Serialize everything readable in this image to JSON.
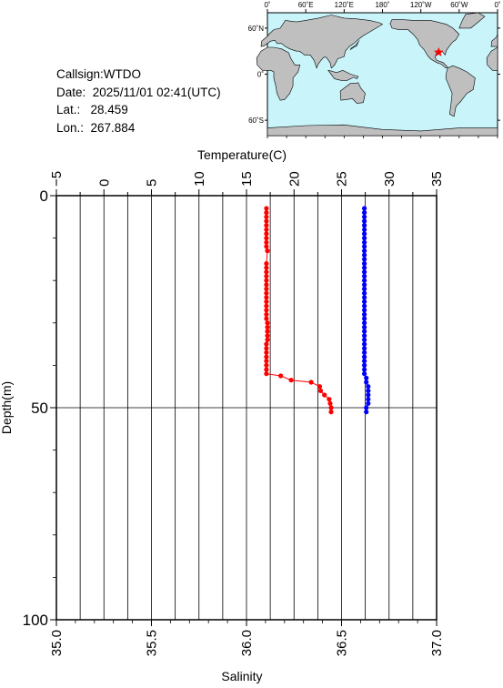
{
  "info": {
    "callsign": "Callsign:WTDO",
    "date": "Date:  2025/11/01 02:41(UTC)",
    "lat": "Lat.:   28.459",
    "lon": "Lon.:  267.884"
  },
  "map": {
    "top_ticks": [
      "0˚",
      "60˚E",
      "120˚E",
      "180˚",
      "120˚W",
      "60˚W",
      "0˚"
    ],
    "left_ticks": [
      "60˚N",
      "0˚",
      "60˚S"
    ],
    "station_marker": "star",
    "colors": {
      "ocean": "#c8f4fa",
      "land": "#bfbfbf",
      "marker": "#ff0000"
    }
  },
  "chart_data": {
    "type": "scatter",
    "title": "",
    "ylabel": "Depth(m)",
    "ylim": [
      100,
      0
    ],
    "yticks": [
      "0",
      "50",
      "100"
    ],
    "grid": true,
    "temperature_axis": {
      "label": "Temperature(C)",
      "range": [
        -5,
        35
      ],
      "ticks": [
        "−5",
        "0",
        "5",
        "10",
        "15",
        "20",
        "25",
        "30",
        "35"
      ]
    },
    "salinity_axis": {
      "label": "Salinity",
      "range": [
        35.0,
        37.0
      ],
      "ticks": [
        "35.0",
        "35.5",
        "36.0",
        "36.5",
        "37.0"
      ]
    },
    "series": [
      {
        "variable": "temperature",
        "color": "#ff0000",
        "points": [
          [
            17.1,
            3
          ],
          [
            17.1,
            4
          ],
          [
            17.1,
            5
          ],
          [
            17.1,
            6
          ],
          [
            17.1,
            7
          ],
          [
            17.1,
            8
          ],
          [
            17.1,
            9
          ],
          [
            17.1,
            10
          ],
          [
            17.1,
            11
          ],
          [
            17.1,
            12
          ],
          [
            17.2,
            13
          ],
          [
            17.1,
            16
          ],
          [
            17.1,
            17
          ],
          [
            17.1,
            18
          ],
          [
            17.1,
            19
          ],
          [
            17.1,
            20
          ],
          [
            17.1,
            21
          ],
          [
            17.1,
            22
          ],
          [
            17.1,
            23
          ],
          [
            17.1,
            24
          ],
          [
            17.1,
            25
          ],
          [
            17.1,
            26
          ],
          [
            17.1,
            27
          ],
          [
            17.1,
            28
          ],
          [
            17.1,
            29
          ],
          [
            17.2,
            30
          ],
          [
            17.2,
            31
          ],
          [
            17.2,
            32
          ],
          [
            17.2,
            33
          ],
          [
            17.2,
            34
          ],
          [
            17.1,
            35
          ],
          [
            17.1,
            36
          ],
          [
            17.1,
            37
          ],
          [
            17.1,
            38
          ],
          [
            17.1,
            39
          ],
          [
            17.1,
            40
          ],
          [
            17.1,
            41
          ],
          [
            17.1,
            42
          ],
          [
            18.6,
            42.5
          ],
          [
            19.7,
            43.5
          ],
          [
            21.8,
            44
          ],
          [
            22.7,
            45
          ],
          [
            22.8,
            46
          ],
          [
            23.2,
            47
          ],
          [
            23.7,
            48
          ],
          [
            23.8,
            49
          ],
          [
            23.9,
            50
          ],
          [
            23.9,
            51
          ]
        ]
      },
      {
        "variable": "salinity",
        "color": "#0000ff",
        "points": [
          [
            36.62,
            3
          ],
          [
            36.62,
            4
          ],
          [
            36.62,
            5
          ],
          [
            36.62,
            6
          ],
          [
            36.62,
            7
          ],
          [
            36.62,
            8
          ],
          [
            36.62,
            9
          ],
          [
            36.62,
            10
          ],
          [
            36.62,
            11
          ],
          [
            36.62,
            12
          ],
          [
            36.62,
            13
          ],
          [
            36.62,
            14
          ],
          [
            36.62,
            15
          ],
          [
            36.62,
            16
          ],
          [
            36.62,
            17
          ],
          [
            36.62,
            18
          ],
          [
            36.62,
            19
          ],
          [
            36.62,
            20
          ],
          [
            36.62,
            21
          ],
          [
            36.62,
            22
          ],
          [
            36.62,
            23
          ],
          [
            36.62,
            24
          ],
          [
            36.62,
            25
          ],
          [
            36.62,
            26
          ],
          [
            36.62,
            27
          ],
          [
            36.62,
            28
          ],
          [
            36.62,
            29
          ],
          [
            36.62,
            30
          ],
          [
            36.62,
            31
          ],
          [
            36.62,
            32
          ],
          [
            36.62,
            33
          ],
          [
            36.62,
            34
          ],
          [
            36.62,
            35
          ],
          [
            36.62,
            36
          ],
          [
            36.62,
            37
          ],
          [
            36.62,
            38
          ],
          [
            36.62,
            39
          ],
          [
            36.62,
            40
          ],
          [
            36.62,
            41
          ],
          [
            36.62,
            42
          ],
          [
            36.63,
            43
          ],
          [
            36.63,
            44
          ],
          [
            36.64,
            45
          ],
          [
            36.64,
            46
          ],
          [
            36.64,
            47
          ],
          [
            36.64,
            48
          ],
          [
            36.64,
            49
          ],
          [
            36.63,
            50
          ],
          [
            36.63,
            51
          ]
        ]
      }
    ]
  }
}
